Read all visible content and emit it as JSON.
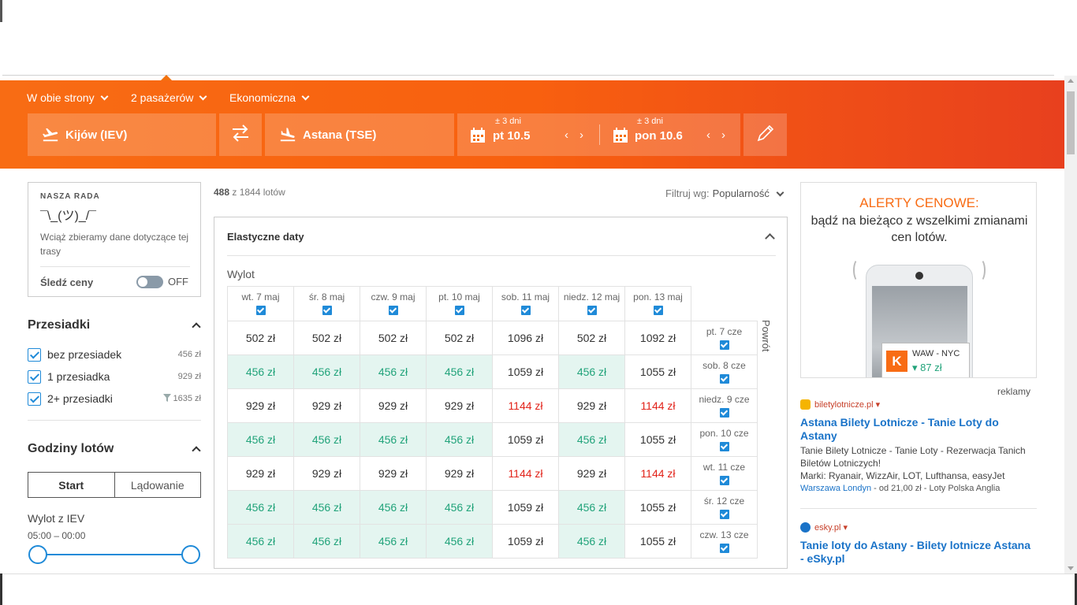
{
  "search": {
    "trip_type": "W obie strony",
    "passengers": "2 pasażerów",
    "cabin": "Ekonomiczna",
    "origin": "Kijów (IEV)",
    "destination": "Astana (TSE)",
    "depart_flex": "± 3 dni",
    "depart_date": "pt 10.5",
    "return_flex": "± 3 dni",
    "return_date": "pon 10.6",
    "prev_arrow": "‹",
    "next_arrow": "›"
  },
  "tip": {
    "title": "NASZA RADA",
    "face": "¯\\_(ツ)_/¯",
    "text": "Wciąż zbieramy dane dotyczące tej trasy",
    "follow": "Śledź ceny",
    "toggle_state": "OFF"
  },
  "stops": {
    "title": "Przesiadki",
    "items": [
      {
        "label": "bez przesiadek",
        "price": "456 zł"
      },
      {
        "label": "1 przesiadka",
        "price": "929 zł"
      },
      {
        "label": "2+ przesiadki",
        "price": "1635 zł"
      }
    ]
  },
  "times": {
    "title": "Godziny lotów",
    "tab_start": "Start",
    "tab_landing": "Lądowanie",
    "from_label": "Wylot z IEV",
    "range": "05:00 – 00:00"
  },
  "results": {
    "count_shown": "488",
    "count_rest": "z 1844 lotów",
    "sort_label": "Filtruj wg:",
    "sort_value": "Popularność"
  },
  "flex": {
    "title": "Elastyczne daty",
    "depart_label": "Wylot",
    "return_label": "Powrót",
    "columns": [
      "wt. 7 maj",
      "śr. 8 maj",
      "czw. 9 maj",
      "pt. 10 maj",
      "sob. 11 maj",
      "niedz. 12 maj",
      "pon. 13 maj"
    ],
    "rows": [
      {
        "label": "pt. 7 cze",
        "cells": [
          {
            "v": "502 zł",
            "t": "n"
          },
          {
            "v": "502 zł",
            "t": "n"
          },
          {
            "v": "502 zł",
            "t": "n"
          },
          {
            "v": "502 zł",
            "t": "n"
          },
          {
            "v": "1096 zł",
            "t": "n"
          },
          {
            "v": "502 zł",
            "t": "n"
          },
          {
            "v": "1092 zł",
            "t": "n"
          }
        ]
      },
      {
        "label": "sob. 8 cze",
        "cells": [
          {
            "v": "456 zł",
            "t": "g"
          },
          {
            "v": "456 zł",
            "t": "g"
          },
          {
            "v": "456 zł",
            "t": "g"
          },
          {
            "v": "456 zł",
            "t": "g"
          },
          {
            "v": "1059 zł",
            "t": "n"
          },
          {
            "v": "456 zł",
            "t": "g"
          },
          {
            "v": "1055 zł",
            "t": "n"
          }
        ]
      },
      {
        "label": "niedz. 9 cze",
        "cells": [
          {
            "v": "929 zł",
            "t": "n"
          },
          {
            "v": "929 zł",
            "t": "n"
          },
          {
            "v": "929 zł",
            "t": "n"
          },
          {
            "v": "929 zł",
            "t": "n"
          },
          {
            "v": "1144 zł",
            "t": "r"
          },
          {
            "v": "929 zł",
            "t": "n"
          },
          {
            "v": "1144 zł",
            "t": "r"
          }
        ]
      },
      {
        "label": "pon. 10 cze",
        "cells": [
          {
            "v": "456 zł",
            "t": "g"
          },
          {
            "v": "456 zł",
            "t": "g"
          },
          {
            "v": "456 zł",
            "t": "g"
          },
          {
            "v": "456 zł",
            "t": "g"
          },
          {
            "v": "1059 zł",
            "t": "n"
          },
          {
            "v": "456 zł",
            "t": "g"
          },
          {
            "v": "1055 zł",
            "t": "n"
          }
        ]
      },
      {
        "label": "wt. 11 cze",
        "cells": [
          {
            "v": "929 zł",
            "t": "n"
          },
          {
            "v": "929 zł",
            "t": "n"
          },
          {
            "v": "929 zł",
            "t": "n"
          },
          {
            "v": "929 zł",
            "t": "n"
          },
          {
            "v": "1144 zł",
            "t": "r"
          },
          {
            "v": "929 zł",
            "t": "n"
          },
          {
            "v": "1144 zł",
            "t": "r"
          }
        ]
      },
      {
        "label": "śr. 12 cze",
        "cells": [
          {
            "v": "456 zł",
            "t": "g"
          },
          {
            "v": "456 zł",
            "t": "g"
          },
          {
            "v": "456 zł",
            "t": "g"
          },
          {
            "v": "456 zł",
            "t": "g"
          },
          {
            "v": "1059 zł",
            "t": "n"
          },
          {
            "v": "456 zł",
            "t": "g"
          },
          {
            "v": "1055 zł",
            "t": "n"
          }
        ]
      },
      {
        "label": "czw. 13 cze",
        "cells": [
          {
            "v": "456 zł",
            "t": "g"
          },
          {
            "v": "456 zł",
            "t": "g"
          },
          {
            "v": "456 zł",
            "t": "g"
          },
          {
            "v": "456 zł",
            "t": "g"
          },
          {
            "v": "1059 zł",
            "t": "n"
          },
          {
            "v": "456 zł",
            "t": "g"
          },
          {
            "v": "1055 zł",
            "t": "n"
          }
        ]
      }
    ]
  },
  "ad_banner": {
    "headline": "ALERTY CENOWE:",
    "subline": "bądź na bieżąco z wszelkimi zmianami cen lotów.",
    "logo_letter": "K",
    "route": "WAW - NYC",
    "price": "▾ 87 zł"
  },
  "ads": {
    "label": "reklamy",
    "items": [
      {
        "source": "biletylotnicze.pl ▾",
        "title": "Astana Bilety Lotnicze - Tanie Loty do Astany",
        "desc1": "Tanie Bilety Lotnicze - Tanie Loty - Rezerwacja Tanich Biletów Lotniczych!",
        "desc2": "Marki: Ryanair, WizzAir, LOT, Lufthansa, easyJet",
        "foot_link": "Warszawa Londyn",
        "foot_rest": "- od 21,00 zł - Loty Polska Anglia"
      },
      {
        "source": "esky.pl ▾",
        "title": "Tanie loty do Astany - Bilety lotnicze Astana - eSky.pl"
      }
    ]
  },
  "colors": {
    "brand_orange": "#f86c14",
    "cheap_green": "#21a37a",
    "expensive_red": "#e2231a",
    "link_blue": "#1a73c8"
  }
}
